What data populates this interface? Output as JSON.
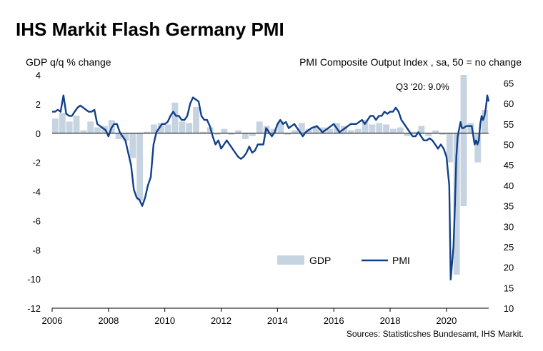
{
  "chart_data": {
    "type": "bar+line",
    "title": "IHS Markit Flash Germany PMI",
    "left_axis_label": "GDP q/q % change",
    "right_axis_label": "PMI Composite Output Index , sa, 50 = no change",
    "left_ylim": [
      -12,
      4
    ],
    "left_ticks": [
      "4",
      "2",
      "0",
      "-2",
      "-4",
      "-6",
      "-8",
      "-10",
      "-12"
    ],
    "right_ylim": [
      10,
      67
    ],
    "right_ticks": [
      "65",
      "60",
      "55",
      "50",
      "45",
      "40",
      "35",
      "30",
      "25",
      "20",
      "15",
      "10"
    ],
    "x_tick_labels": [
      "2006",
      "2008",
      "2010",
      "2012",
      "2014",
      "2016",
      "2018",
      "2020"
    ],
    "x_range": [
      2006.0,
      2021.5
    ],
    "annotation": "Q3 '20: 9.0%",
    "legend": [
      "GDP",
      "PMI"
    ],
    "source": "Sources: Statisticshes Bundesamt, IHS Markit.",
    "colors": {
      "gdp": "#c6d3e0",
      "pmi": "#10408a"
    },
    "gdp": {
      "name": "GDP",
      "x": [
        2006.0,
        2006.25,
        2006.5,
        2006.75,
        2007.0,
        2007.25,
        2007.5,
        2007.75,
        2008.0,
        2008.25,
        2008.5,
        2008.75,
        2009.0,
        2009.25,
        2009.5,
        2009.75,
        2010.0,
        2010.25,
        2010.5,
        2010.75,
        2011.0,
        2011.25,
        2011.5,
        2011.75,
        2012.0,
        2012.25,
        2012.5,
        2012.75,
        2013.0,
        2013.25,
        2013.5,
        2013.75,
        2014.0,
        2014.25,
        2014.5,
        2014.75,
        2015.0,
        2015.25,
        2015.5,
        2015.75,
        2016.0,
        2016.25,
        2016.5,
        2016.75,
        2017.0,
        2017.25,
        2017.5,
        2017.75,
        2018.0,
        2018.25,
        2018.5,
        2018.75,
        2019.0,
        2019.25,
        2019.5,
        2019.75,
        2020.0,
        2020.25,
        2020.5,
        2020.75,
        2021.0,
        2021.25
      ],
      "values": [
        1.0,
        1.4,
        0.8,
        1.2,
        0.2,
        0.8,
        0.4,
        0.5,
        0.9,
        -0.4,
        -0.5,
        -1.7,
        -4.6,
        0.1,
        0.6,
        0.7,
        0.6,
        2.1,
        0.8,
        0.7,
        1.8,
        0.1,
        0.4,
        -0.1,
        0.3,
        -0.1,
        0.2,
        -0.4,
        -0.2,
        0.8,
        0.5,
        0.3,
        0.8,
        -0.1,
        0.2,
        0.7,
        0.3,
        0.5,
        0.4,
        0.3,
        0.7,
        0.5,
        0.2,
        0.3,
        0.9,
        0.6,
        0.7,
        0.6,
        0.3,
        0.4,
        -0.2,
        0.1,
        0.5,
        -0.2,
        0.2,
        -0.1,
        -2.0,
        -9.7,
        9.0,
        0.7,
        -2.0,
        1.6
      ]
    },
    "pmi": {
      "name": "PMI",
      "x": [
        2006.0,
        2006.1,
        2006.2,
        2006.3,
        2006.4,
        2006.5,
        2006.6,
        2006.7,
        2006.8,
        2006.9,
        2007.0,
        2007.1,
        2007.2,
        2007.3,
        2007.4,
        2007.5,
        2007.6,
        2007.7,
        2007.8,
        2007.9,
        2008.0,
        2008.1,
        2008.2,
        2008.3,
        2008.4,
        2008.5,
        2008.6,
        2008.7,
        2008.8,
        2008.9,
        2009.0,
        2009.1,
        2009.2,
        2009.3,
        2009.4,
        2009.5,
        2009.6,
        2009.7,
        2009.8,
        2009.9,
        2010.0,
        2010.1,
        2010.2,
        2010.3,
        2010.4,
        2010.5,
        2010.6,
        2010.7,
        2010.8,
        2010.9,
        2011.0,
        2011.1,
        2011.2,
        2011.3,
        2011.4,
        2011.5,
        2011.6,
        2011.7,
        2011.8,
        2011.9,
        2012.0,
        2012.1,
        2012.2,
        2012.3,
        2012.4,
        2012.5,
        2012.6,
        2012.7,
        2012.8,
        2012.9,
        2013.0,
        2013.1,
        2013.2,
        2013.3,
        2013.4,
        2013.5,
        2013.6,
        2013.7,
        2013.8,
        2013.9,
        2014.0,
        2014.1,
        2014.2,
        2014.3,
        2014.4,
        2014.5,
        2014.6,
        2014.7,
        2014.8,
        2014.9,
        2015.0,
        2015.2,
        2015.4,
        2015.6,
        2015.8,
        2016.0,
        2016.2,
        2016.4,
        2016.6,
        2016.8,
        2017.0,
        2017.1,
        2017.2,
        2017.3,
        2017.4,
        2017.5,
        2017.6,
        2017.7,
        2017.8,
        2017.9,
        2018.0,
        2018.1,
        2018.2,
        2018.3,
        2018.4,
        2018.5,
        2018.6,
        2018.7,
        2018.8,
        2018.9,
        2019.0,
        2019.1,
        2019.2,
        2019.3,
        2019.4,
        2019.5,
        2019.6,
        2019.7,
        2019.8,
        2019.9,
        2020.0,
        2020.1,
        2020.15,
        2020.25,
        2020.3,
        2020.35,
        2020.4,
        2020.5,
        2020.55,
        2020.6,
        2020.7,
        2020.8,
        2020.9,
        2021.0,
        2021.05,
        2021.1,
        2021.15,
        2021.2,
        2021.25,
        2021.3,
        2021.35,
        2021.4,
        2021.45,
        2021.5
      ],
      "values": [
        58,
        58,
        58.5,
        58,
        62,
        57.5,
        57,
        57,
        58,
        59,
        59.5,
        59,
        58.5,
        58,
        58,
        58.5,
        55,
        54.5,
        54,
        53.5,
        52,
        54,
        55,
        55,
        53,
        52,
        51,
        48,
        45,
        39,
        37,
        36.5,
        35,
        37,
        40,
        42,
        50,
        53,
        54,
        55,
        55,
        55.5,
        57,
        58,
        57,
        57,
        56,
        56,
        57,
        60,
        61.5,
        61,
        60.5,
        57,
        56,
        56,
        54.5,
        52,
        50,
        51,
        49,
        50,
        51,
        50,
        49,
        48,
        47,
        46.5,
        47,
        48,
        49.5,
        48,
        48.5,
        50,
        50,
        50,
        54,
        53,
        52,
        53,
        55,
        56,
        55,
        55.5,
        54,
        54.5,
        55,
        54,
        53,
        52,
        53,
        54,
        54.5,
        53,
        54,
        55,
        53,
        54,
        55,
        55,
        56,
        55,
        56,
        57,
        57,
        56,
        57,
        57,
        58,
        57.5,
        58,
        58,
        59,
        58,
        56,
        55,
        54,
        53,
        52,
        52,
        53,
        52,
        51,
        51,
        51.5,
        51,
        50,
        49,
        50,
        49,
        47,
        40,
        17,
        25,
        35,
        47,
        52,
        55.5,
        54,
        54,
        54.5,
        54.5,
        54.5,
        50,
        51,
        50,
        51,
        55,
        57,
        56,
        57,
        59,
        62,
        60.5
      ]
    }
  }
}
